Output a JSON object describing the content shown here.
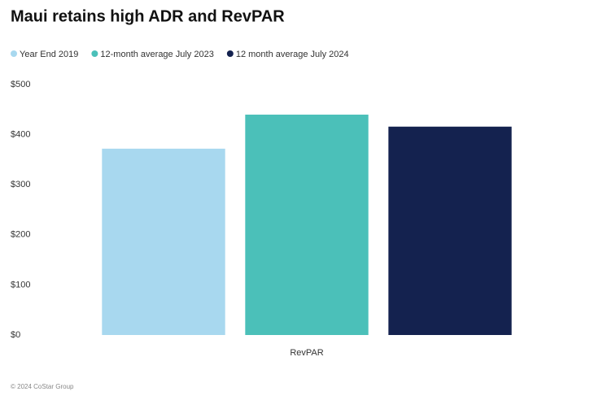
{
  "chart_data": {
    "type": "bar",
    "title": "Maui retains high ADR and RevPAR",
    "categories": [
      "RevPAR"
    ],
    "series": [
      {
        "name": "Year End 2019",
        "color": "#a8d8ef",
        "values": [
          372
        ]
      },
      {
        "name": "12-month average July 2023",
        "color": "#4bc0b9",
        "values": [
          440
        ]
      },
      {
        "name": "12 month average July 2024",
        "color": "#14224f",
        "values": [
          416
        ]
      }
    ],
    "ylim": [
      0,
      500
    ],
    "yticks": [
      {
        "value": 0,
        "label": "$0"
      },
      {
        "value": 100,
        "label": "$100"
      },
      {
        "value": 200,
        "label": "$200"
      },
      {
        "value": 300,
        "label": "$300"
      },
      {
        "value": 400,
        "label": "$400"
      },
      {
        "value": 500,
        "label": "$500"
      }
    ],
    "grid": false,
    "source": "© 2024 CoStar Group"
  }
}
